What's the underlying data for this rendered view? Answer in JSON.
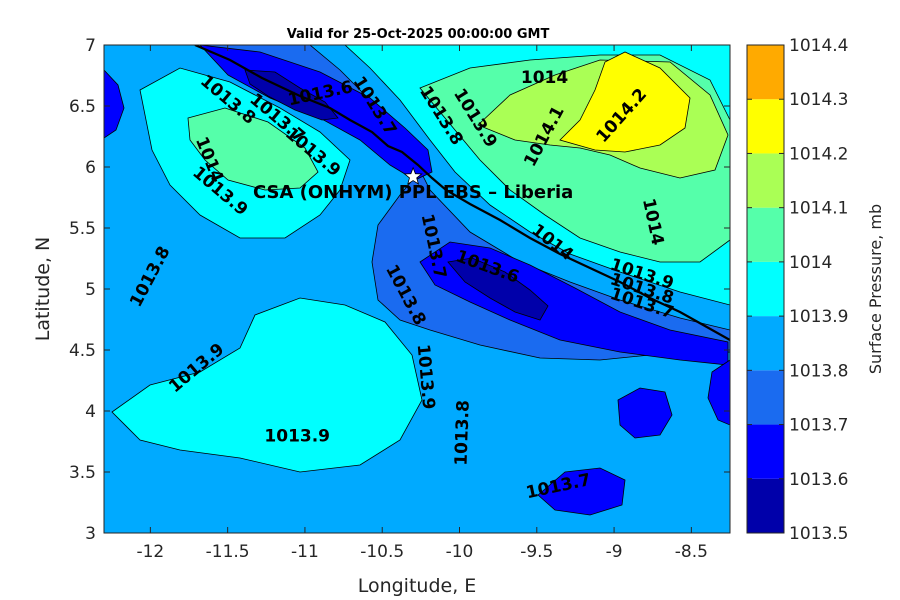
{
  "chart_data": {
    "type": "contour",
    "title": "Valid for 25-Oct-2025 00:00:00 GMT",
    "xlabel": "Longitude, E",
    "ylabel": "Latitude, N",
    "xlim": [
      -12.3,
      -8.25
    ],
    "ylim": [
      3,
      7
    ],
    "xticks": [
      -12,
      -11.5,
      -11,
      -10.5,
      -10,
      -9.5,
      -9,
      -8.5
    ],
    "xtick_labels": [
      "-12",
      "-11.5",
      "-11",
      "-10.5",
      "-10",
      "-9.5",
      "-9",
      "-8.5"
    ],
    "yticks": [
      3,
      3.5,
      4,
      4.5,
      5,
      5.5,
      6,
      6.5,
      7
    ],
    "ytick_labels": [
      "3",
      "3.5",
      "4",
      "4.5",
      "5",
      "5.5",
      "6",
      "6.5",
      "7"
    ],
    "colorbar": {
      "label": "Surface Pressure, mb",
      "levels": [
        1013.5,
        1013.6,
        1013.7,
        1013.8,
        1013.9,
        1014,
        1014.1,
        1014.2,
        1014.3,
        1014.4
      ],
      "tick_labels": [
        "1013.5",
        "1013.6",
        "1013.7",
        "1013.8",
        "1013.9",
        "1014",
        "1014.1",
        "1014.2",
        "1014.3",
        "1014.4"
      ],
      "colors": [
        "#0000aa",
        "#0000ff",
        "#1a6bf0",
        "#00aaff",
        "#00ffff",
        "#55ffaa",
        "#aaff55",
        "#ffff00",
        "#ffaa00",
        "#ff5500"
      ]
    },
    "contour_labels": [
      {
        "text": "1014",
        "lon": -9.45,
        "lat": 6.73,
        "rot": 0
      },
      {
        "text": "1014.1",
        "lon": -9.45,
        "lat": 6.25,
        "rot": -62
      },
      {
        "text": "1014.2",
        "lon": -8.95,
        "lat": 6.42,
        "rot": -48
      },
      {
        "text": "1013.9",
        "lon": -9.9,
        "lat": 6.4,
        "rot": 58
      },
      {
        "text": "1013.8",
        "lon": -10.12,
        "lat": 6.42,
        "rot": 58
      },
      {
        "text": "1013.7",
        "lon": -10.55,
        "lat": 6.5,
        "rot": 58
      },
      {
        "text": "1013.6",
        "lon": -10.9,
        "lat": 6.6,
        "rot": -12
      },
      {
        "text": "1013.8",
        "lon": -11.5,
        "lat": 6.55,
        "rot": 40
      },
      {
        "text": "1013.7",
        "lon": -11.18,
        "lat": 6.4,
        "rot": 40
      },
      {
        "text": "1013.9",
        "lon": -10.95,
        "lat": 6.12,
        "rot": 40
      },
      {
        "text": "1014",
        "lon": -11.62,
        "lat": 6.06,
        "rot": 68
      },
      {
        "text": "1013.9",
        "lon": -11.55,
        "lat": 5.8,
        "rot": 40
      },
      {
        "text": "1013.8",
        "lon": -12.0,
        "lat": 5.1,
        "rot": -62
      },
      {
        "text": "1013.7",
        "lon": -10.17,
        "lat": 5.35,
        "rot": 78
      },
      {
        "text": "1013.6",
        "lon": -9.82,
        "lat": 5.18,
        "rot": 20
      },
      {
        "text": "1013.8",
        "lon": -10.35,
        "lat": 4.95,
        "rot": 62
      },
      {
        "text": "1014",
        "lon": -9.4,
        "lat": 5.38,
        "rot": 38
      },
      {
        "text": "1014",
        "lon": -8.75,
        "lat": 5.55,
        "rot": 78
      },
      {
        "text": "1013.9",
        "lon": -8.82,
        "lat": 5.12,
        "rot": 18
      },
      {
        "text": "1013.8",
        "lon": -8.82,
        "lat": 5.0,
        "rot": 18
      },
      {
        "text": "1013.7",
        "lon": -8.82,
        "lat": 4.88,
        "rot": 18
      },
      {
        "text": "1013.9",
        "lon": -10.22,
        "lat": 4.28,
        "rot": 85
      },
      {
        "text": "1013.9",
        "lon": -11.7,
        "lat": 4.35,
        "rot": -40
      },
      {
        "text": "1013.9",
        "lon": -11.05,
        "lat": 3.79,
        "rot": 0
      },
      {
        "text": "1013.8",
        "lon": -9.98,
        "lat": 3.82,
        "rot": -88
      },
      {
        "text": "1013.7",
        "lon": -9.36,
        "lat": 3.38,
        "rot": -12
      }
    ],
    "site": {
      "label": "CSA (ONHYM) PPL EBS  – Liberia",
      "lon": -10.3,
      "lat": 5.92
    }
  }
}
